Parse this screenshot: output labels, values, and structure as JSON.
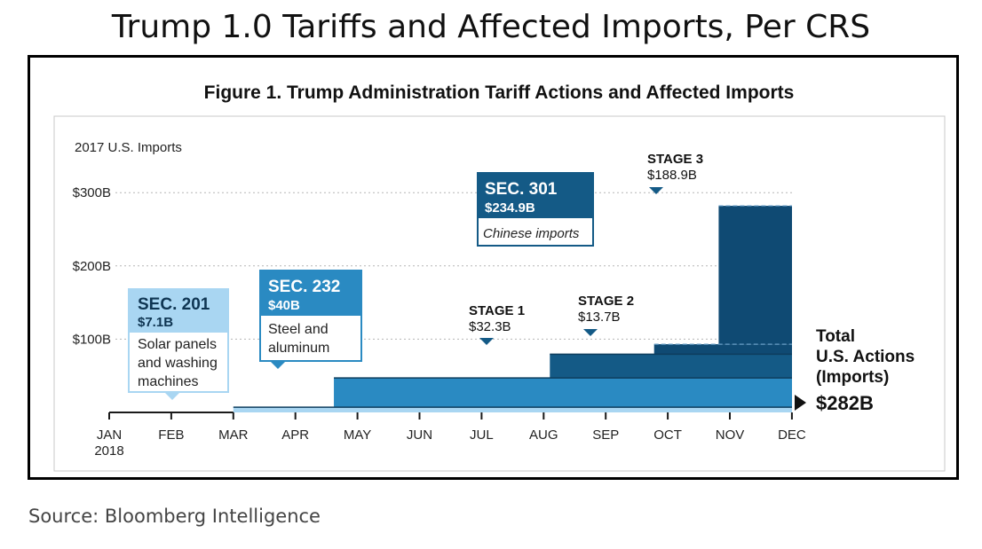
{
  "page": {
    "title": "Trump 1.0 Tariffs and Affected Imports, Per CRS",
    "source": "Source: Bloomberg Intelligence"
  },
  "colors": {
    "light": "#a9d6f2",
    "medium": "#2a8ac2",
    "dark": "#145a86",
    "darkest": "#0f4a73",
    "axis": "#1a1a1a"
  },
  "chart_data": {
    "type": "area",
    "title": "Figure 1. Trump Administration Tariff Actions and Affected Imports",
    "ylabel": "2017 U.S. Imports",
    "ylim": [
      0,
      300
    ],
    "yticks": [
      {
        "value": 100,
        "label": "$100B"
      },
      {
        "value": 200,
        "label": "$200B"
      },
      {
        "value": 300,
        "label": "$300B"
      }
    ],
    "months": [
      "JAN",
      "FEB",
      "MAR",
      "APR",
      "MAY",
      "JUN",
      "JUL",
      "AUG",
      "SEP",
      "OCT",
      "NOV",
      "DEC"
    ],
    "year_label": "2018",
    "series": [
      {
        "name": "SEC. 201",
        "start_month": 2.0,
        "value": 7.1
      },
      {
        "name": "SEC. 232",
        "start_month": 3.62,
        "value": 40
      },
      {
        "name": "STAGE 1",
        "start_month": 7.1,
        "value": 32.3
      },
      {
        "name": "STAGE 2",
        "start_month": 8.78,
        "value": 13.7
      },
      {
        "name": "STAGE 3",
        "start_month": 9.82,
        "value": 188.9
      }
    ],
    "callouts": {
      "sec201": {
        "title": "SEC. 201",
        "amount": "$7.1B",
        "desc": [
          "Solar panels",
          "and washing",
          "machines"
        ]
      },
      "sec232": {
        "title": "SEC. 232",
        "amount": "$40B",
        "desc": [
          "Steel and",
          "aluminum"
        ]
      },
      "sec301": {
        "title": "SEC. 301",
        "amount": "$234.9B",
        "desc": "Chinese imports"
      },
      "stage1": {
        "title": "STAGE 1",
        "amount": "$32.3B"
      },
      "stage2": {
        "title": "STAGE 2",
        "amount": "$13.7B"
      },
      "stage3": {
        "title": "STAGE 3",
        "amount": "$188.9B"
      }
    },
    "total": {
      "lines": [
        "Total",
        "U.S. Actions",
        "(Imports)"
      ],
      "value": "$282B"
    }
  }
}
